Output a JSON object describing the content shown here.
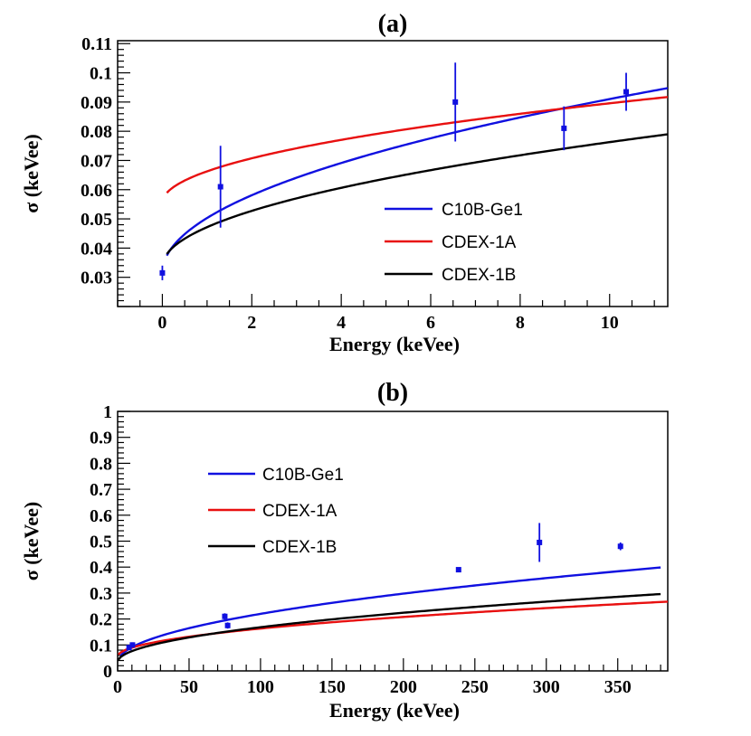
{
  "colors": {
    "blue": "#1010e0",
    "red": "#e81010",
    "black": "#000000"
  },
  "chart_data": [
    {
      "type": "line",
      "title": "(a)",
      "xlabel": "Energy (keVee)",
      "ylabel": "σ (keVee)",
      "xlim": [
        -1,
        11.3
      ],
      "ylim": [
        0.02,
        0.111
      ],
      "xticks": [
        0,
        2,
        4,
        6,
        8,
        10
      ],
      "xtick_labels": [
        "0",
        "2",
        "4",
        "6",
        "8",
        "10"
      ],
      "yticks": [
        0.03,
        0.04,
        0.05,
        0.06,
        0.07,
        0.08,
        0.09,
        0.1,
        0.11
      ],
      "ytick_labels": [
        "0.03",
        "0.04",
        "0.05",
        "0.06",
        "0.07",
        "0.08",
        "0.09",
        "0.1",
        "0.11"
      ],
      "legend": {
        "placement": "center-right",
        "entries": [
          "C10B-Ge1",
          "CDEX-1A",
          "CDEX-1B"
        ]
      },
      "series": [
        {
          "name": "C10B-Ge1",
          "color": "blue",
          "x_start": 0.1,
          "x_end": 11.3,
          "a": 0.03147,
          "b": 0.01883
        },
        {
          "name": "CDEX-1A",
          "color": "red",
          "x_start": 0.1,
          "x_end": 11.3,
          "a": 0.05551,
          "b": 0.01077
        },
        {
          "name": "CDEX-1B",
          "color": "black",
          "x_start": 0.1,
          "x_end": 11.3,
          "a": 0.03371,
          "b": 0.01346
        }
      ],
      "points": [
        {
          "x": 0.0,
          "y": 0.0315,
          "err": 0.0025
        },
        {
          "x": 1.3,
          "y": 0.061,
          "err": 0.014
        },
        {
          "x": 6.55,
          "y": 0.09,
          "err": 0.0135
        },
        {
          "x": 8.98,
          "y": 0.081,
          "err": 0.0075
        },
        {
          "x": 10.37,
          "y": 0.0935,
          "err": 0.0065
        }
      ]
    },
    {
      "type": "line",
      "title": "(b)",
      "xlabel": "Energy (keVee)",
      "ylabel": "σ (keVee)",
      "xlim": [
        0,
        385
      ],
      "ylim": [
        0,
        1
      ],
      "xticks": [
        0,
        50,
        100,
        150,
        200,
        250,
        300,
        350
      ],
      "xtick_labels": [
        "0",
        "50",
        "100",
        "150",
        "200",
        "250",
        "300",
        "350"
      ],
      "yticks": [
        0,
        0.1,
        0.2,
        0.3,
        0.4,
        0.5,
        0.6,
        0.7,
        0.8,
        0.9,
        1
      ],
      "ytick_labels": [
        "0",
        "0.1",
        "0.2",
        "0.3",
        "0.4",
        "0.5",
        "0.6",
        "0.7",
        "0.8",
        "0.9",
        "1"
      ],
      "legend": {
        "placement": "top-left",
        "entries": [
          "C10B-Ge1",
          "CDEX-1A",
          "CDEX-1B"
        ]
      },
      "series": [
        {
          "name": "C10B-Ge1",
          "color": "blue",
          "x_start": 2,
          "x_end": 380,
          "a": 0.03147,
          "b": 0.01883
        },
        {
          "name": "CDEX-1A",
          "color": "red",
          "x_start": 0.5,
          "x_end": 385,
          "a": 0.05551,
          "b": 0.01077
        },
        {
          "name": "CDEX-1B",
          "color": "black",
          "x_start": 0.5,
          "x_end": 380,
          "a": 0.03371,
          "b": 0.01346
        }
      ],
      "points": [
        {
          "x": 8.0,
          "y": 0.09,
          "err": 0.01
        },
        {
          "x": 10.4,
          "y": 0.1,
          "err": 0.01
        },
        {
          "x": 75.0,
          "y": 0.21,
          "err": 0.012
        },
        {
          "x": 77.0,
          "y": 0.175,
          "err": 0.012
        },
        {
          "x": 238.6,
          "y": 0.39,
          "err": 0.008
        },
        {
          "x": 295.2,
          "y": 0.495,
          "err": 0.075
        },
        {
          "x": 351.9,
          "y": 0.48,
          "err": 0.015
        }
      ]
    }
  ]
}
